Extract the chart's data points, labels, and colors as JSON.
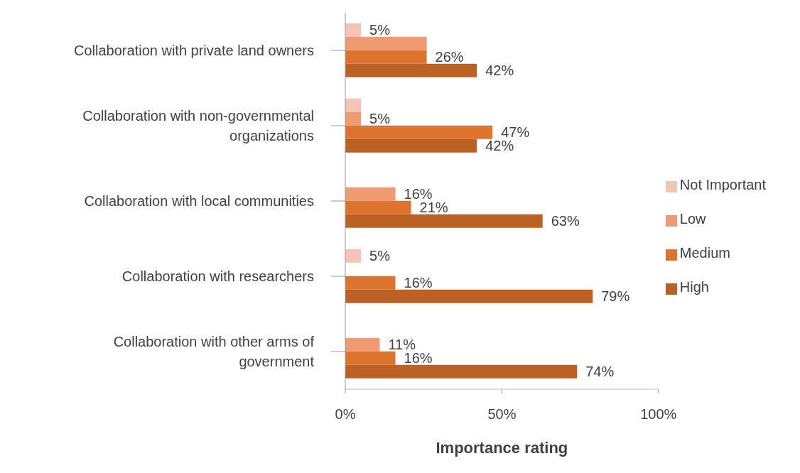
{
  "chart_data": {
    "type": "bar",
    "orientation": "horizontal",
    "xlabel": "Importance rating",
    "categories": [
      "Collaboration with private land owners",
      "Collaboration with non-governmental organizations",
      "Collaboration with local communities",
      "Collaboration with researchers",
      "Collaboration with other arms of government"
    ],
    "series": [
      {
        "name": "Not Important",
        "color": "#f5c4b4",
        "values": [
          5,
          5,
          null,
          5,
          null
        ],
        "value_labels": [
          "5%",
          null,
          null,
          "5%",
          null
        ]
      },
      {
        "name": "Low",
        "color": "#f09a72",
        "values": [
          26,
          5,
          16,
          null,
          11
        ],
        "value_labels": [
          null,
          "5%",
          "16%",
          null,
          "11%"
        ]
      },
      {
        "name": "Medium",
        "color": "#de752e",
        "values": [
          26,
          47,
          21,
          16,
          16
        ],
        "value_labels": [
          "26%",
          "47%",
          "21%",
          "16%",
          "16%"
        ]
      },
      {
        "name": "High",
        "color": "#bb6124",
        "values": [
          42,
          42,
          63,
          79,
          74
        ],
        "value_labels": [
          "42%",
          "42%",
          "63%",
          "79%",
          "74%"
        ]
      }
    ],
    "xlim": [
      0,
      100
    ],
    "xticks": [
      {
        "value": 0,
        "label": "0%"
      },
      {
        "value": 50,
        "label": "50%"
      },
      {
        "value": 100,
        "label": "100%"
      }
    ],
    "grid": false,
    "legend": "right"
  }
}
